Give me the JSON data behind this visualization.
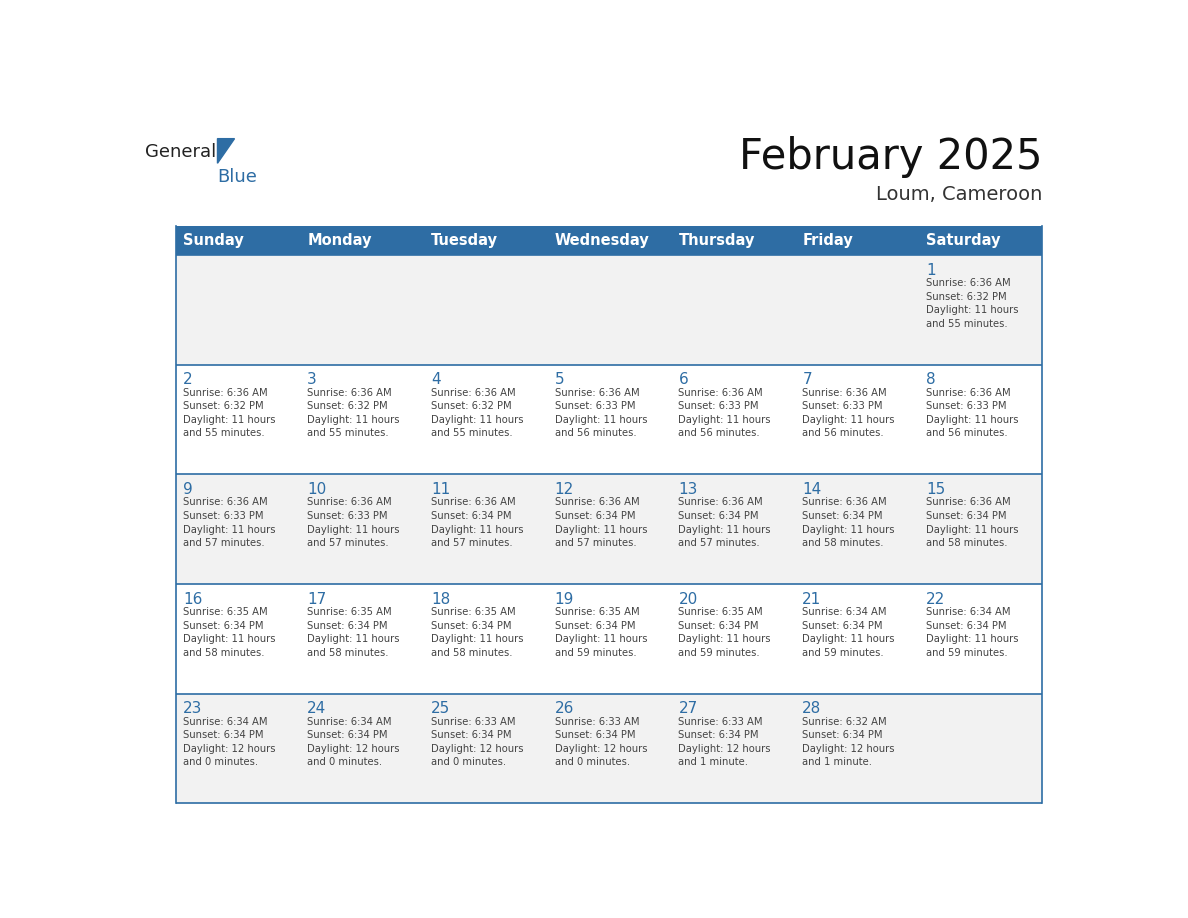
{
  "title": "February 2025",
  "subtitle": "Loum, Cameroon",
  "header_bg": "#2E6DA4",
  "header_text_color": "#FFFFFF",
  "cell_border_color": "#2E6DA4",
  "day_number_color": "#2E6DA4",
  "cell_text_color": "#444444",
  "background_color": "#FFFFFF",
  "alt_row_color": "#F2F2F2",
  "days_of_week": [
    "Sunday",
    "Monday",
    "Tuesday",
    "Wednesday",
    "Thursday",
    "Friday",
    "Saturday"
  ],
  "weeks": [
    [
      {
        "day": null,
        "info": null
      },
      {
        "day": null,
        "info": null
      },
      {
        "day": null,
        "info": null
      },
      {
        "day": null,
        "info": null
      },
      {
        "day": null,
        "info": null
      },
      {
        "day": null,
        "info": null
      },
      {
        "day": 1,
        "info": "Sunrise: 6:36 AM\nSunset: 6:32 PM\nDaylight: 11 hours\nand 55 minutes."
      }
    ],
    [
      {
        "day": 2,
        "info": "Sunrise: 6:36 AM\nSunset: 6:32 PM\nDaylight: 11 hours\nand 55 minutes."
      },
      {
        "day": 3,
        "info": "Sunrise: 6:36 AM\nSunset: 6:32 PM\nDaylight: 11 hours\nand 55 minutes."
      },
      {
        "day": 4,
        "info": "Sunrise: 6:36 AM\nSunset: 6:32 PM\nDaylight: 11 hours\nand 55 minutes."
      },
      {
        "day": 5,
        "info": "Sunrise: 6:36 AM\nSunset: 6:33 PM\nDaylight: 11 hours\nand 56 minutes."
      },
      {
        "day": 6,
        "info": "Sunrise: 6:36 AM\nSunset: 6:33 PM\nDaylight: 11 hours\nand 56 minutes."
      },
      {
        "day": 7,
        "info": "Sunrise: 6:36 AM\nSunset: 6:33 PM\nDaylight: 11 hours\nand 56 minutes."
      },
      {
        "day": 8,
        "info": "Sunrise: 6:36 AM\nSunset: 6:33 PM\nDaylight: 11 hours\nand 56 minutes."
      }
    ],
    [
      {
        "day": 9,
        "info": "Sunrise: 6:36 AM\nSunset: 6:33 PM\nDaylight: 11 hours\nand 57 minutes."
      },
      {
        "day": 10,
        "info": "Sunrise: 6:36 AM\nSunset: 6:33 PM\nDaylight: 11 hours\nand 57 minutes."
      },
      {
        "day": 11,
        "info": "Sunrise: 6:36 AM\nSunset: 6:34 PM\nDaylight: 11 hours\nand 57 minutes."
      },
      {
        "day": 12,
        "info": "Sunrise: 6:36 AM\nSunset: 6:34 PM\nDaylight: 11 hours\nand 57 minutes."
      },
      {
        "day": 13,
        "info": "Sunrise: 6:36 AM\nSunset: 6:34 PM\nDaylight: 11 hours\nand 57 minutes."
      },
      {
        "day": 14,
        "info": "Sunrise: 6:36 AM\nSunset: 6:34 PM\nDaylight: 11 hours\nand 58 minutes."
      },
      {
        "day": 15,
        "info": "Sunrise: 6:36 AM\nSunset: 6:34 PM\nDaylight: 11 hours\nand 58 minutes."
      }
    ],
    [
      {
        "day": 16,
        "info": "Sunrise: 6:35 AM\nSunset: 6:34 PM\nDaylight: 11 hours\nand 58 minutes."
      },
      {
        "day": 17,
        "info": "Sunrise: 6:35 AM\nSunset: 6:34 PM\nDaylight: 11 hours\nand 58 minutes."
      },
      {
        "day": 18,
        "info": "Sunrise: 6:35 AM\nSunset: 6:34 PM\nDaylight: 11 hours\nand 58 minutes."
      },
      {
        "day": 19,
        "info": "Sunrise: 6:35 AM\nSunset: 6:34 PM\nDaylight: 11 hours\nand 59 minutes."
      },
      {
        "day": 20,
        "info": "Sunrise: 6:35 AM\nSunset: 6:34 PM\nDaylight: 11 hours\nand 59 minutes."
      },
      {
        "day": 21,
        "info": "Sunrise: 6:34 AM\nSunset: 6:34 PM\nDaylight: 11 hours\nand 59 minutes."
      },
      {
        "day": 22,
        "info": "Sunrise: 6:34 AM\nSunset: 6:34 PM\nDaylight: 11 hours\nand 59 minutes."
      }
    ],
    [
      {
        "day": 23,
        "info": "Sunrise: 6:34 AM\nSunset: 6:34 PM\nDaylight: 12 hours\nand 0 minutes."
      },
      {
        "day": 24,
        "info": "Sunrise: 6:34 AM\nSunset: 6:34 PM\nDaylight: 12 hours\nand 0 minutes."
      },
      {
        "day": 25,
        "info": "Sunrise: 6:33 AM\nSunset: 6:34 PM\nDaylight: 12 hours\nand 0 minutes."
      },
      {
        "day": 26,
        "info": "Sunrise: 6:33 AM\nSunset: 6:34 PM\nDaylight: 12 hours\nand 0 minutes."
      },
      {
        "day": 27,
        "info": "Sunrise: 6:33 AM\nSunset: 6:34 PM\nDaylight: 12 hours\nand 1 minute."
      },
      {
        "day": 28,
        "info": "Sunrise: 6:32 AM\nSunset: 6:34 PM\nDaylight: 12 hours\nand 1 minute."
      },
      {
        "day": null,
        "info": null
      }
    ]
  ]
}
